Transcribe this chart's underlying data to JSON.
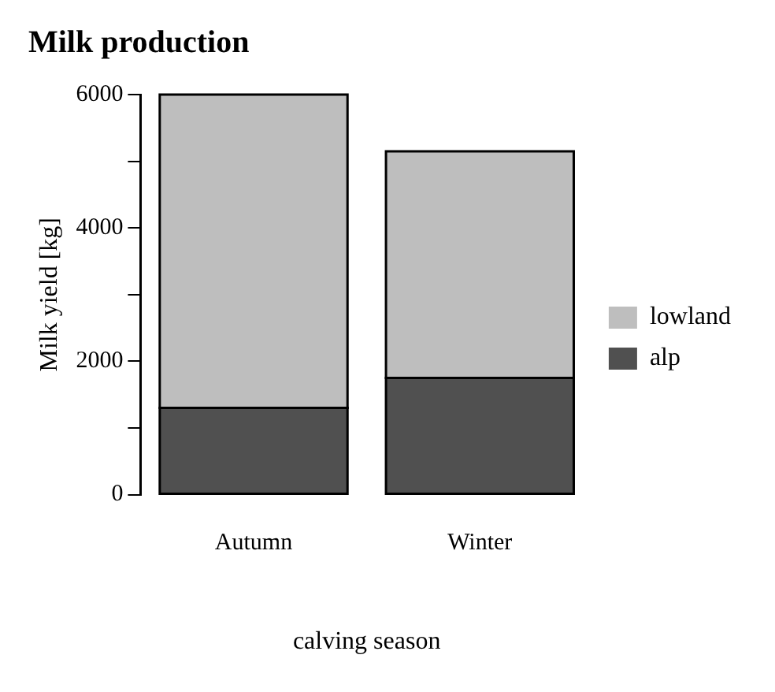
{
  "chart_data": {
    "type": "bar",
    "title": "Milk production",
    "xlabel": "calving season",
    "ylabel": "Milk yield [kg]",
    "categories": [
      "Autumn",
      "Winter"
    ],
    "stacked": true,
    "legend": "right",
    "grid": false,
    "ylim": [
      0,
      6000
    ],
    "yticks": [
      0,
      {
        "value": 1000,
        "label": null
      },
      2000,
      {
        "value": 3000,
        "label": null
      },
      4000,
      {
        "value": 5000,
        "label": null
      },
      6000
    ],
    "series": [
      {
        "name": "alp",
        "color": "#505050",
        "values": [
          1300,
          1750
        ]
      },
      {
        "name": "lowland",
        "color": "#bebebe",
        "values": [
          4700,
          3400
        ]
      }
    ]
  }
}
